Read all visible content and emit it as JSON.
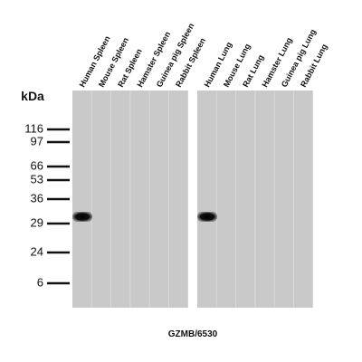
{
  "units": "kDa",
  "panels": [
    {
      "lanes": [
        "Human Spleen",
        "Mouse Spleen",
        "Rat Spleen",
        "Hamster Spleen",
        "Guinea pig Spleen",
        "Rabbit Spleen"
      ]
    },
    {
      "lanes": [
        "Human Lung",
        "Mouse Lung",
        "Rat Lung",
        "Hamster Lung",
        "Guinea pig Lung",
        "Rabbit Lung"
      ]
    }
  ],
  "markers": [
    116,
    97,
    66,
    53,
    36,
    29,
    24,
    6
  ],
  "caption": "GZMB/6530"
}
